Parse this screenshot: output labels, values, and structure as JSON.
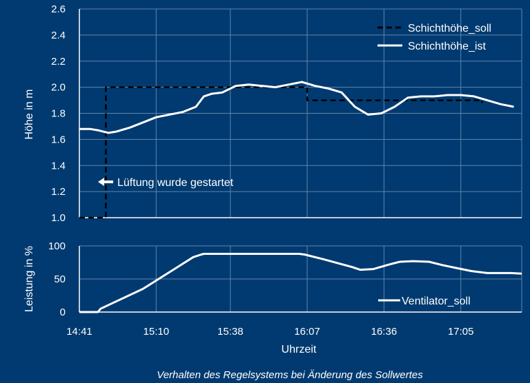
{
  "colors": {
    "background": "#003a70",
    "line": "#ffffff",
    "grid": "#5f86ad"
  },
  "chart_data": [
    {
      "type": "line",
      "ylabel": "Höhe in m",
      "ylim": [
        1.0,
        2.6
      ],
      "yticks": [
        "1.0",
        "1.2",
        "1.4",
        "1.6",
        "1.8",
        "2.0",
        "2.2",
        "2.4",
        "2.6"
      ],
      "grid": true,
      "legend": "top-right",
      "annotation": "Lüftung wurde gestartet",
      "series": [
        {
          "name": "Schichthöhe_soll",
          "style": "dashed",
          "x": [
            "14:41",
            "14:51",
            "14:51",
            "16:07",
            "16:07",
            "17:13",
            "17:13"
          ],
          "values": [
            1.0,
            1.0,
            2.0,
            2.0,
            1.9,
            1.9,
            1.88
          ]
        },
        {
          "name": "Schichthöhe_ist",
          "style": "solid",
          "x": [
            "14:41",
            "14:45",
            "14:48",
            "14:52",
            "14:55",
            "15:00",
            "15:05",
            "15:10",
            "15:15",
            "15:20",
            "15:25",
            "15:28",
            "15:31",
            "15:35",
            "15:40",
            "15:45",
            "15:50",
            "15:55",
            "16:00",
            "16:05",
            "16:10",
            "16:15",
            "16:20",
            "16:25",
            "16:30",
            "16:35",
            "16:40",
            "16:45",
            "16:50",
            "16:55",
            "17:00",
            "17:05",
            "17:10",
            "17:15",
            "17:20",
            "17:25"
          ],
          "values": [
            1.68,
            1.68,
            1.67,
            1.65,
            1.66,
            1.69,
            1.73,
            1.77,
            1.79,
            1.81,
            1.85,
            1.93,
            1.95,
            1.96,
            2.01,
            2.02,
            2.01,
            2.0,
            2.02,
            2.04,
            2.01,
            1.99,
            1.96,
            1.85,
            1.79,
            1.8,
            1.85,
            1.92,
            1.93,
            1.93,
            1.94,
            1.94,
            1.93,
            1.9,
            1.87,
            1.85
          ]
        }
      ]
    },
    {
      "type": "line",
      "ylabel": "Leistung in %",
      "xlabel": "Uhrzeit",
      "ylim": [
        0,
        100
      ],
      "yticks": [
        "0",
        "50",
        "100"
      ],
      "xticks": [
        "14:41",
        "15:10",
        "15:38",
        "16:07",
        "16:36",
        "17:05"
      ],
      "grid": true,
      "legend": "bottom-right",
      "series": [
        {
          "name": "Ventilator_soll",
          "x": [
            "14:41",
            "14:48",
            "14:49",
            "15:05",
            "15:24",
            "15:27",
            "15:28",
            "15:31",
            "16:04",
            "16:06",
            "16:13",
            "16:24",
            "16:27",
            "16:32",
            "16:38",
            "16:42",
            "16:47",
            "16:53",
            "16:58",
            "17:04",
            "17:09",
            "17:15",
            "17:24",
            "17:28"
          ],
          "values": [
            0,
            0,
            5,
            35,
            83,
            87,
            88,
            88,
            88,
            87,
            80,
            68,
            64,
            65,
            72,
            76,
            77,
            76,
            71,
            66,
            62,
            59,
            59,
            58
          ]
        }
      ]
    }
  ],
  "caption": "Verhalten des Regelsystems bei Änderung des Sollwertes"
}
